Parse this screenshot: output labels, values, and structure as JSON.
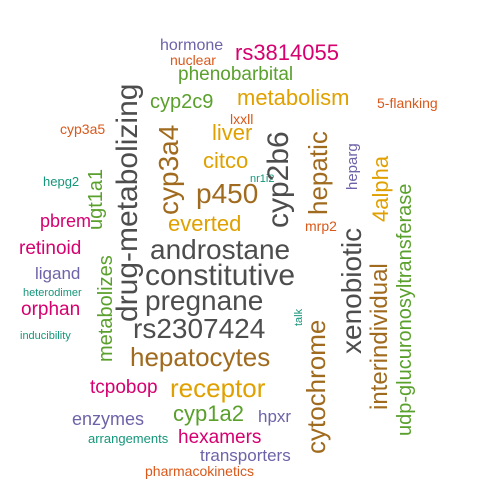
{
  "colors": {
    "slate": "#4d4d4d",
    "brown": "#a06b1f",
    "gold": "#e0a100",
    "green": "#5aa02c",
    "magenta": "#d6006f",
    "purple": "#6d63a8",
    "orange": "#d9581a",
    "teal": "#14967a"
  },
  "words": [
    {
      "text": "hormone",
      "color": "#6d63a8"
    },
    {
      "text": "rs3814055",
      "color": "#d6006f"
    },
    {
      "text": "nuclear",
      "color": "#d9581a"
    },
    {
      "text": "phenobarbital",
      "color": "#5aa02c"
    },
    {
      "text": "cyp2c9",
      "color": "#5aa02c"
    },
    {
      "text": "metabolism",
      "color": "#e0a100"
    },
    {
      "text": "5-flanking",
      "color": "#d9581a"
    },
    {
      "text": "lxxll",
      "color": "#d9581a"
    },
    {
      "text": "cyp3a5",
      "color": "#d9581a"
    },
    {
      "text": "liver",
      "color": "#e0a100"
    },
    {
      "text": "citco",
      "color": "#e0a100"
    },
    {
      "text": "heparg",
      "color": "#6d63a8"
    },
    {
      "text": "nr1i2",
      "color": "#14967a"
    },
    {
      "text": "hepg2",
      "color": "#14967a"
    },
    {
      "text": "p450",
      "color": "#a06b1f"
    },
    {
      "text": "everted",
      "color": "#e0a100"
    },
    {
      "text": "pbrem",
      "color": "#d6006f"
    },
    {
      "text": "mrp2",
      "color": "#d9581a"
    },
    {
      "text": "androstane",
      "color": "#4d4d4d"
    },
    {
      "text": "retinoid",
      "color": "#d6006f"
    },
    {
      "text": "constitutive",
      "color": "#4d4d4d"
    },
    {
      "text": "ligand",
      "color": "#6d63a8"
    },
    {
      "text": "heterodimer",
      "color": "#14967a"
    },
    {
      "text": "pregnane",
      "color": "#4d4d4d"
    },
    {
      "text": "orphan",
      "color": "#d6006f"
    },
    {
      "text": "talk",
      "color": "#14967a"
    },
    {
      "text": "rs2307424",
      "color": "#4d4d4d"
    },
    {
      "text": "inducibility",
      "color": "#14967a"
    },
    {
      "text": "hepatocytes",
      "color": "#a06b1f"
    },
    {
      "text": "tcpobop",
      "color": "#d6006f"
    },
    {
      "text": "receptor",
      "color": "#e0a100"
    },
    {
      "text": "enzymes",
      "color": "#6d63a8"
    },
    {
      "text": "cyp1a2",
      "color": "#5aa02c"
    },
    {
      "text": "hpxr",
      "color": "#6d63a8"
    },
    {
      "text": "arrangements",
      "color": "#14967a"
    },
    {
      "text": "hexamers",
      "color": "#d6006f"
    },
    {
      "text": "transporters",
      "color": "#6d63a8"
    },
    {
      "text": "pharmacokinetics",
      "color": "#d9581a"
    },
    {
      "text": "drug-metabolizing",
      "color": "#4d4d4d"
    },
    {
      "text": "cyp3a4",
      "color": "#a06b1f"
    },
    {
      "text": "cyp2b6",
      "color": "#4d4d4d"
    },
    {
      "text": "hepatic",
      "color": "#a06b1f"
    },
    {
      "text": "ugt1a1",
      "color": "#5aa02c"
    },
    {
      "text": "metabolizes",
      "color": "#5aa02c"
    },
    {
      "text": "cytochrome",
      "color": "#a06b1f"
    },
    {
      "text": "xenobiotic",
      "color": "#4d4d4d"
    },
    {
      "text": "interindividual",
      "color": "#a06b1f"
    },
    {
      "text": "4alpha",
      "color": "#e0a100"
    },
    {
      "text": "udp-glucuronosyltransferase",
      "color": "#5aa02c"
    }
  ]
}
